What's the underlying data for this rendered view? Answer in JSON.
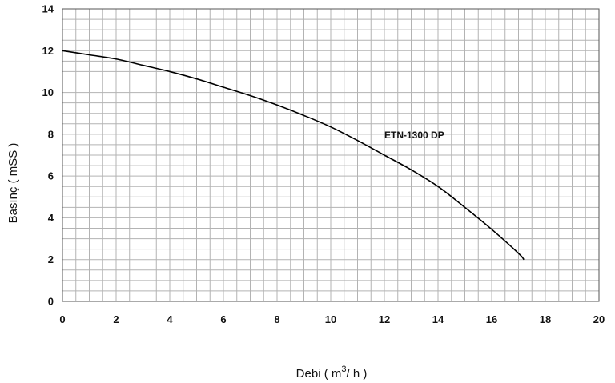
{
  "chart_data": {
    "type": "line",
    "xlabel": "Debi ( m",
    "xlabel_superscript": "3",
    "xlabel_suffix": "/ h )",
    "ylabel": "Basınç ( mSS )",
    "xlim": [
      0,
      20
    ],
    "ylim": [
      0,
      14
    ],
    "x_ticks": [
      "0",
      "2",
      "4",
      "6",
      "8",
      "10",
      "12",
      "14",
      "16",
      "18",
      "20"
    ],
    "y_ticks": [
      "0",
      "2",
      "4",
      "6",
      "8",
      "10",
      "12",
      "14"
    ],
    "grid": true,
    "grid_minor_x_step": 0.5,
    "grid_minor_y_step": 0.5,
    "series": [
      {
        "name": "ETN-1300 DP",
        "color": "#000000",
        "x": [
          0,
          1,
          2,
          3,
          4,
          5,
          6,
          7,
          8,
          9,
          10,
          11,
          12,
          13,
          14,
          15,
          16,
          17,
          17.2
        ],
        "y": [
          12.0,
          11.8,
          11.6,
          11.3,
          11.0,
          10.65,
          10.25,
          9.85,
          9.4,
          8.9,
          8.35,
          7.7,
          7.0,
          6.3,
          5.5,
          4.5,
          3.45,
          2.3,
          2.0
        ]
      }
    ],
    "annotations": [
      {
        "text": "ETN-1300 DP",
        "x": 12,
        "y": 8.0
      }
    ]
  }
}
